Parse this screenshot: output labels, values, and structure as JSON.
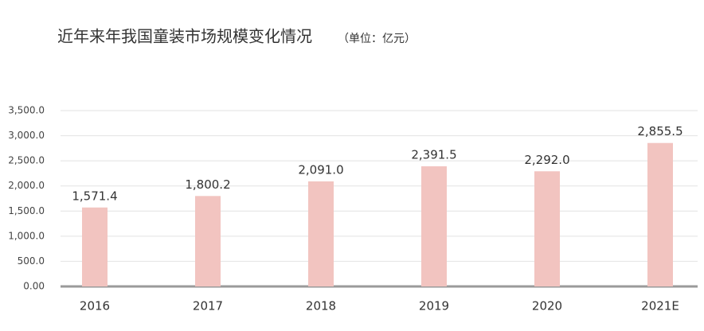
{
  "chart_data": {
    "type": "bar",
    "title": "近年来年我国童装市场规模变化情况",
    "subtitle": "（单位：亿元）",
    "categories": [
      "2016",
      "2017",
      "2018",
      "2019",
      "2020",
      "2021E"
    ],
    "values": [
      1571.4,
      1800.2,
      2091.0,
      2391.5,
      2292.0,
      2855.5
    ],
    "value_labels": [
      "1,571.4",
      "1,800.2",
      "2,091.0",
      "2,391.5",
      "2,292.0",
      "2,855.5"
    ],
    "color": "#f2c4c0",
    "ylim": [
      0,
      3500
    ],
    "yticks": [
      {
        "value": 0,
        "label": "0.00"
      },
      {
        "value": 500,
        "label": "500.0"
      },
      {
        "value": 1000,
        "label": "1,000.0"
      },
      {
        "value": 1500,
        "label": "1,500.0"
      },
      {
        "value": 2000,
        "label": "2,000.0"
      },
      {
        "value": 2500,
        "label": "2,500.0"
      },
      {
        "value": 3000,
        "label": "3,000.0"
      },
      {
        "value": 3500,
        "label": "3,500.0"
      }
    ],
    "grid": true
  }
}
